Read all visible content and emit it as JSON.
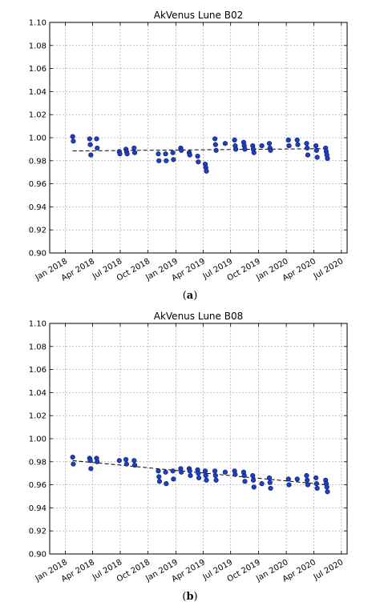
{
  "figure": {
    "caption_a_open": "(",
    "caption_a_letter": "a",
    "caption_a_close": ")",
    "caption_b_open": "(",
    "caption_b_letter": "b",
    "caption_b_close": ")"
  },
  "colors": {
    "point": "#1f3fbf",
    "point_edge": "#0a1a66",
    "trend": "#000000",
    "grid": "#b0b0b0",
    "axis": "#000000"
  },
  "chart_data": [
    {
      "type": "scatter",
      "title": "AkVenus Lune B02",
      "xlabel": "",
      "ylabel": "",
      "ylim": [
        0.9,
        1.1
      ],
      "xlim": [
        "2017-11-10",
        "2020-07-20"
      ],
      "grid": true,
      "x_ticks": [
        "2018-01-01",
        "2018-04-01",
        "2018-07-01",
        "2018-10-01",
        "2019-01-01",
        "2019-04-01",
        "2019-07-01",
        "2019-10-01",
        "2020-01-01",
        "2020-04-01",
        "2020-07-01"
      ],
      "x_tick_labels": [
        "Jan 2018",
        "Apr 2018",
        "Jul 2018",
        "Oct 2018",
        "Jan 2019",
        "Apr 2019",
        "Jul 2019",
        "Oct 2019",
        "Jan 2020",
        "Apr 2020",
        "Jul 2020"
      ],
      "y_ticks": [
        0.9,
        0.92,
        0.94,
        0.96,
        0.98,
        1.0,
        1.02,
        1.04,
        1.06,
        1.08,
        1.1
      ],
      "y_tick_labels": [
        "0.90",
        "0.92",
        "0.94",
        "0.96",
        "0.98",
        "1.00",
        "1.02",
        "1.04",
        "1.06",
        "1.08",
        "1.10"
      ],
      "series": [
        {
          "style": "points",
          "points": [
            {
              "x": "2018-01-25",
              "y": 1.001
            },
            {
              "x": "2018-01-27",
              "y": 0.997
            },
            {
              "x": "2018-03-22",
              "y": 0.999
            },
            {
              "x": "2018-03-24",
              "y": 0.994
            },
            {
              "x": "2018-03-26",
              "y": 0.985
            },
            {
              "x": "2018-04-14",
              "y": 0.999
            },
            {
              "x": "2018-04-16",
              "y": 0.991
            },
            {
              "x": "2018-06-28",
              "y": 0.988
            },
            {
              "x": "2018-06-30",
              "y": 0.986
            },
            {
              "x": "2018-07-20",
              "y": 0.99
            },
            {
              "x": "2018-07-22",
              "y": 0.988
            },
            {
              "x": "2018-07-24",
              "y": 0.986
            },
            {
              "x": "2018-08-16",
              "y": 0.991
            },
            {
              "x": "2018-08-18",
              "y": 0.987
            },
            {
              "x": "2018-11-04",
              "y": 0.986
            },
            {
              "x": "2018-11-06",
              "y": 0.98
            },
            {
              "x": "2018-11-28",
              "y": 0.986
            },
            {
              "x": "2018-11-30",
              "y": 0.98
            },
            {
              "x": "2018-12-22",
              "y": 0.987
            },
            {
              "x": "2018-12-24",
              "y": 0.981
            },
            {
              "x": "2019-01-17",
              "y": 0.991
            },
            {
              "x": "2019-01-19",
              "y": 0.989
            },
            {
              "x": "2019-02-14",
              "y": 0.987
            },
            {
              "x": "2019-02-16",
              "y": 0.985
            },
            {
              "x": "2019-03-14",
              "y": 0.984
            },
            {
              "x": "2019-03-16",
              "y": 0.979
            },
            {
              "x": "2019-04-08",
              "y": 0.977
            },
            {
              "x": "2019-04-10",
              "y": 0.974
            },
            {
              "x": "2019-04-12",
              "y": 0.971
            },
            {
              "x": "2019-05-10",
              "y": 0.999
            },
            {
              "x": "2019-05-12",
              "y": 0.994
            },
            {
              "x": "2019-05-14",
              "y": 0.989
            },
            {
              "x": "2019-06-13",
              "y": 0.995
            },
            {
              "x": "2019-07-14",
              "y": 0.998
            },
            {
              "x": "2019-07-16",
              "y": 0.993
            },
            {
              "x": "2019-07-18",
              "y": 0.99
            },
            {
              "x": "2019-08-13",
              "y": 0.996
            },
            {
              "x": "2019-08-15",
              "y": 0.993
            },
            {
              "x": "2019-08-17",
              "y": 0.99
            },
            {
              "x": "2019-09-12",
              "y": 0.993
            },
            {
              "x": "2019-09-14",
              "y": 0.99
            },
            {
              "x": "2019-09-16",
              "y": 0.987
            },
            {
              "x": "2019-10-12",
              "y": 0.993
            },
            {
              "x": "2019-11-06",
              "y": 0.995
            },
            {
              "x": "2019-11-08",
              "y": 0.991
            },
            {
              "x": "2019-11-10",
              "y": 0.989
            },
            {
              "x": "2020-01-08",
              "y": 0.998
            },
            {
              "x": "2020-01-10",
              "y": 0.993
            },
            {
              "x": "2020-02-06",
              "y": 0.998
            },
            {
              "x": "2020-02-08",
              "y": 0.994
            },
            {
              "x": "2020-03-08",
              "y": 0.995
            },
            {
              "x": "2020-03-10",
              "y": 0.991
            },
            {
              "x": "2020-03-12",
              "y": 0.985
            },
            {
              "x": "2020-04-08",
              "y": 0.993
            },
            {
              "x": "2020-04-10",
              "y": 0.989
            },
            {
              "x": "2020-04-12",
              "y": 0.983
            },
            {
              "x": "2020-05-10",
              "y": 0.991
            },
            {
              "x": "2020-05-12",
              "y": 0.988
            },
            {
              "x": "2020-05-14",
              "y": 0.985
            },
            {
              "x": "2020-05-16",
              "y": 0.982
            }
          ]
        },
        {
          "style": "dashed-line",
          "points": [
            {
              "x": "2018-01-25",
              "y": 0.9885
            },
            {
              "x": "2020-05-15",
              "y": 0.9905
            }
          ]
        }
      ]
    },
    {
      "type": "scatter",
      "title": "AkVenus Lune B08",
      "xlabel": "",
      "ylabel": "",
      "ylim": [
        0.9,
        1.1
      ],
      "xlim": [
        "2017-11-10",
        "2020-07-20"
      ],
      "grid": true,
      "x_ticks": [
        "2018-01-01",
        "2018-04-01",
        "2018-07-01",
        "2018-10-01",
        "2019-01-01",
        "2019-04-01",
        "2019-07-01",
        "2019-10-01",
        "2020-01-01",
        "2020-04-01",
        "2020-07-01"
      ],
      "x_tick_labels": [
        "Jan 2018",
        "Apr 2018",
        "Jul 2018",
        "Oct 2018",
        "Jan 2019",
        "Apr 2019",
        "Jul 2019",
        "Oct 2019",
        "Jan 2020",
        "Apr 2020",
        "Jul 2020"
      ],
      "y_ticks": [
        0.9,
        0.92,
        0.94,
        0.96,
        0.98,
        1.0,
        1.02,
        1.04,
        1.06,
        1.08,
        1.1
      ],
      "y_tick_labels": [
        "0.90",
        "0.92",
        "0.94",
        "0.96",
        "0.98",
        "1.00",
        "1.02",
        "1.04",
        "1.06",
        "1.08",
        "1.10"
      ],
      "series": [
        {
          "style": "points",
          "points": [
            {
              "x": "2018-01-25",
              "y": 0.984
            },
            {
              "x": "2018-01-27",
              "y": 0.978
            },
            {
              "x": "2018-03-22",
              "y": 0.983
            },
            {
              "x": "2018-03-24",
              "y": 0.981
            },
            {
              "x": "2018-03-26",
              "y": 0.974
            },
            {
              "x": "2018-04-14",
              "y": 0.983
            },
            {
              "x": "2018-04-16",
              "y": 0.98
            },
            {
              "x": "2018-06-28",
              "y": 0.981
            },
            {
              "x": "2018-07-20",
              "y": 0.982
            },
            {
              "x": "2018-07-22",
              "y": 0.978
            },
            {
              "x": "2018-08-16",
              "y": 0.981
            },
            {
              "x": "2018-08-18",
              "y": 0.977
            },
            {
              "x": "2018-11-04",
              "y": 0.972
            },
            {
              "x": "2018-11-06",
              "y": 0.967
            },
            {
              "x": "2018-11-08",
              "y": 0.963
            },
            {
              "x": "2018-11-28",
              "y": 0.971
            },
            {
              "x": "2018-11-30",
              "y": 0.961
            },
            {
              "x": "2018-12-22",
              "y": 0.972
            },
            {
              "x": "2018-12-24",
              "y": 0.965
            },
            {
              "x": "2019-01-17",
              "y": 0.974
            },
            {
              "x": "2019-01-19",
              "y": 0.971
            },
            {
              "x": "2019-02-14",
              "y": 0.974
            },
            {
              "x": "2019-02-16",
              "y": 0.972
            },
            {
              "x": "2019-02-18",
              "y": 0.968
            },
            {
              "x": "2019-03-14",
              "y": 0.973
            },
            {
              "x": "2019-03-16",
              "y": 0.97
            },
            {
              "x": "2019-03-18",
              "y": 0.966
            },
            {
              "x": "2019-04-08",
              "y": 0.972
            },
            {
              "x": "2019-04-10",
              "y": 0.968
            },
            {
              "x": "2019-04-12",
              "y": 0.964
            },
            {
              "x": "2019-05-10",
              "y": 0.972
            },
            {
              "x": "2019-05-12",
              "y": 0.968
            },
            {
              "x": "2019-05-14",
              "y": 0.964
            },
            {
              "x": "2019-06-13",
              "y": 0.971
            },
            {
              "x": "2019-07-14",
              "y": 0.972
            },
            {
              "x": "2019-07-16",
              "y": 0.969
            },
            {
              "x": "2019-08-13",
              "y": 0.971
            },
            {
              "x": "2019-08-15",
              "y": 0.968
            },
            {
              "x": "2019-08-17",
              "y": 0.963
            },
            {
              "x": "2019-09-12",
              "y": 0.968
            },
            {
              "x": "2019-09-14",
              "y": 0.964
            },
            {
              "x": "2019-09-16",
              "y": 0.958
            },
            {
              "x": "2019-10-12",
              "y": 0.961
            },
            {
              "x": "2019-11-06",
              "y": 0.966
            },
            {
              "x": "2019-11-08",
              "y": 0.962
            },
            {
              "x": "2019-11-10",
              "y": 0.957
            },
            {
              "x": "2020-01-08",
              "y": 0.965
            },
            {
              "x": "2020-01-10",
              "y": 0.96
            },
            {
              "x": "2020-02-06",
              "y": 0.965
            },
            {
              "x": "2020-03-08",
              "y": 0.968
            },
            {
              "x": "2020-03-10",
              "y": 0.964
            },
            {
              "x": "2020-03-12",
              "y": 0.96
            },
            {
              "x": "2020-04-08",
              "y": 0.966
            },
            {
              "x": "2020-04-10",
              "y": 0.961
            },
            {
              "x": "2020-04-12",
              "y": 0.957
            },
            {
              "x": "2020-05-10",
              "y": 0.964
            },
            {
              "x": "2020-05-12",
              "y": 0.961
            },
            {
              "x": "2020-05-14",
              "y": 0.958
            },
            {
              "x": "2020-05-16",
              "y": 0.954
            }
          ]
        },
        {
          "style": "dashed-line",
          "points": [
            {
              "x": "2018-01-25",
              "y": 0.981
            },
            {
              "x": "2020-05-15",
              "y": 0.96
            }
          ]
        }
      ]
    }
  ]
}
